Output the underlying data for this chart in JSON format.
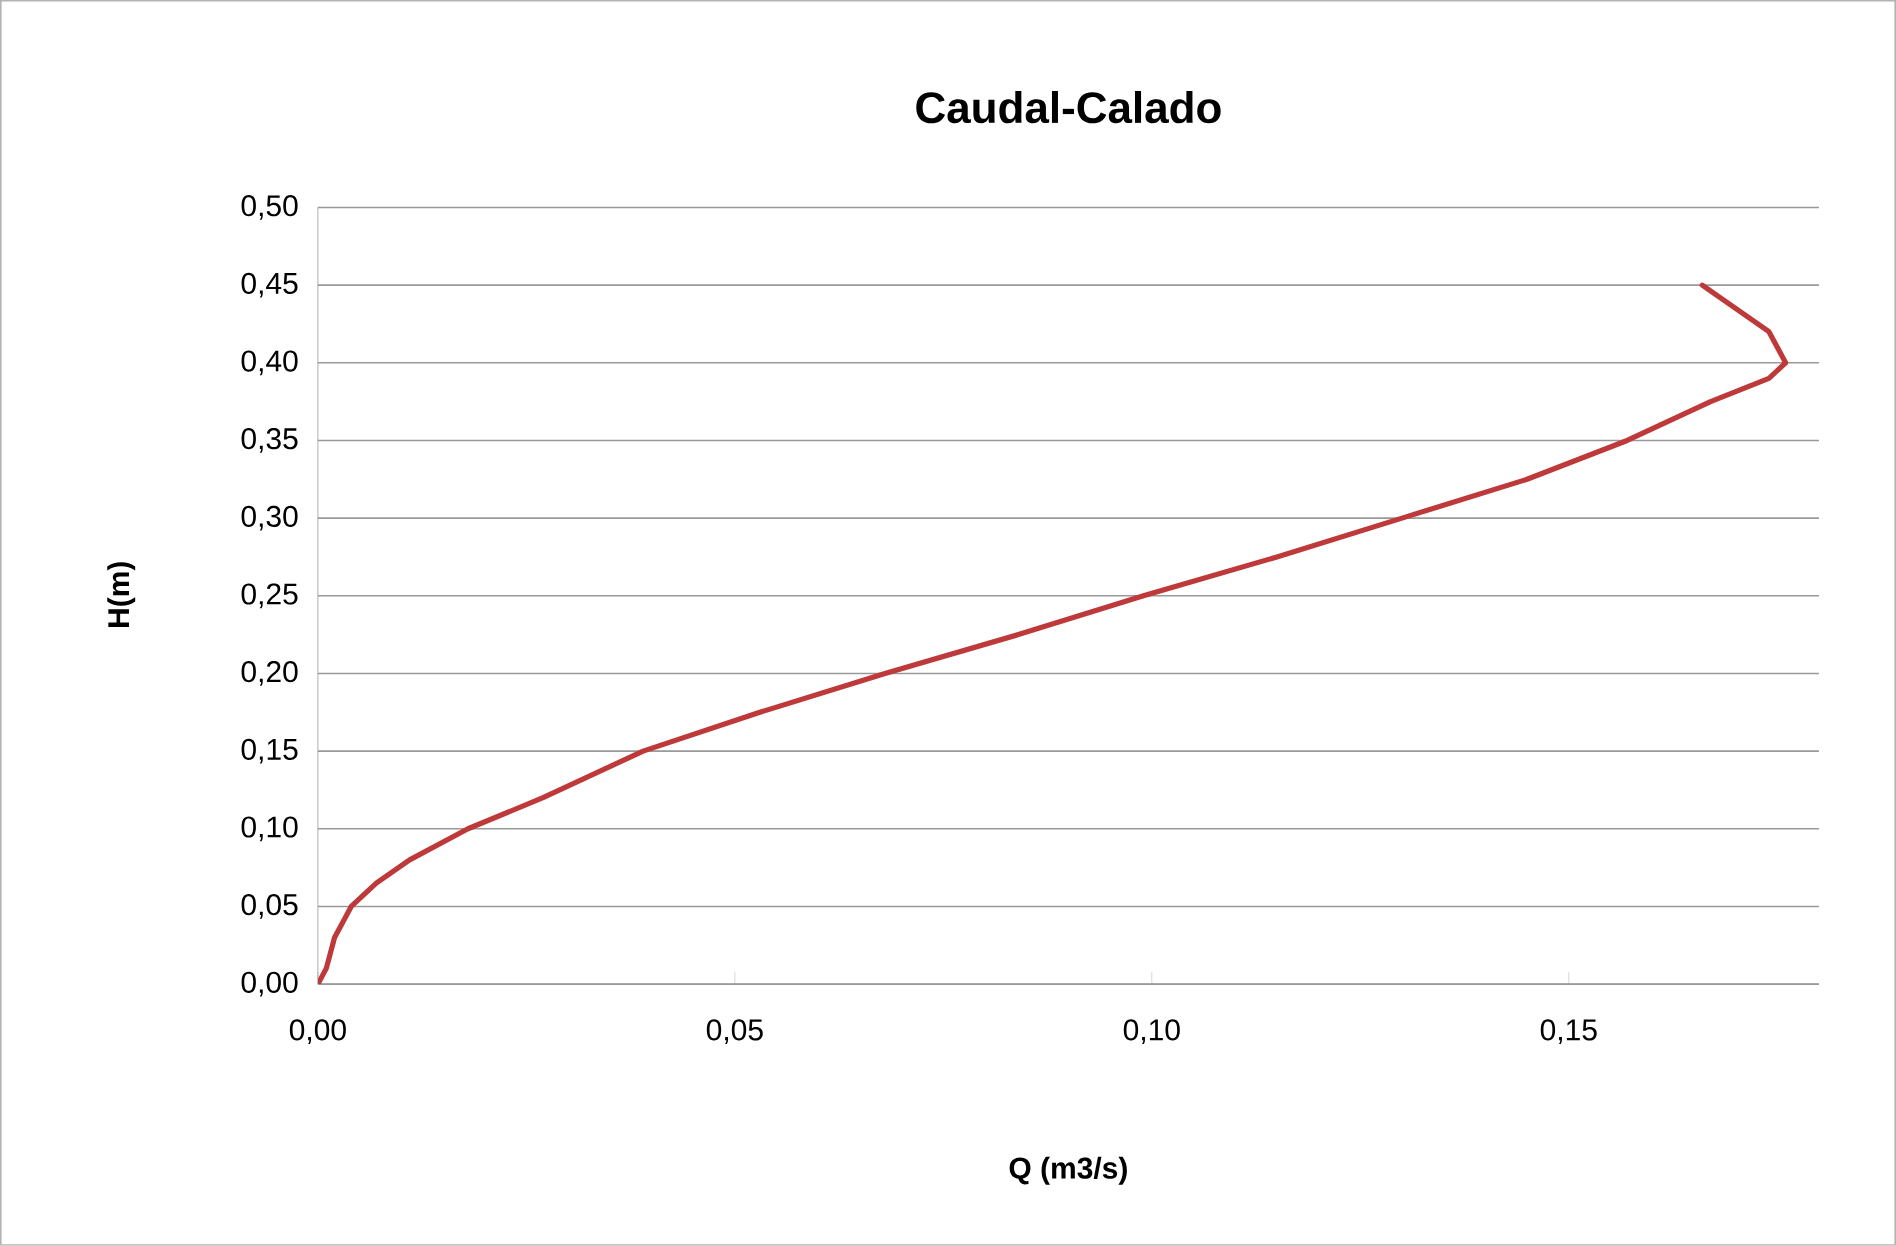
{
  "chart_data": {
    "type": "line",
    "title": "Caudal-Calado",
    "xlabel": "Q (m3/s)",
    "ylabel": "H(m)",
    "series": [
      {
        "color": "#be3a3a",
        "x": [
          0,
          0.001,
          0.002,
          0.004,
          0.007,
          0.011,
          0.018,
          0.027,
          0.039,
          0.053,
          0.068,
          0.084,
          0.099,
          0.115,
          0.13,
          0.145,
          0.157,
          0.167,
          0.174,
          0.176,
          0.174,
          0.17,
          0.166
        ],
        "values": [
          0,
          0.01,
          0.03,
          0.05,
          0.065,
          0.08,
          0.1,
          0.12,
          0.15,
          0.175,
          0.2,
          0.225,
          0.25,
          0.275,
          0.3,
          0.325,
          0.35,
          0.375,
          0.39,
          0.4,
          0.42,
          0.435,
          0.45
        ]
      }
    ],
    "xlim": [
      0,
      0.18
    ],
    "xticks": [
      {
        "value": 0,
        "label": "0,00"
      },
      {
        "value": 0.05,
        "label": "0,05"
      },
      {
        "value": 0.1,
        "label": "0,10"
      },
      {
        "value": 0.15,
        "label": "0,15"
      }
    ],
    "ylim": [
      0,
      0.5
    ],
    "yticks": [
      {
        "value": 0,
        "label": "0,00"
      },
      {
        "value": 0.05,
        "label": "0,05"
      },
      {
        "value": 0.1,
        "label": "0,10"
      },
      {
        "value": 0.15,
        "label": "0,15"
      },
      {
        "value": 0.2,
        "label": "0,20"
      },
      {
        "value": 0.25,
        "label": "0,25"
      },
      {
        "value": 0.3,
        "label": "0,30"
      },
      {
        "value": 0.35,
        "label": "0,35"
      },
      {
        "value": 0.4,
        "label": "0,40"
      },
      {
        "value": 0.45,
        "label": "0,45"
      },
      {
        "value": 0.5,
        "label": "0,50"
      }
    ],
    "grid": "y",
    "marker": "none",
    "line_style": "solid"
  }
}
